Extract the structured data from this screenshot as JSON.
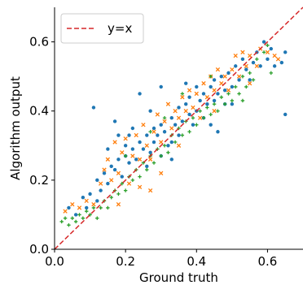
{
  "chart_data": {
    "type": "scatter",
    "xlabel": "Ground truth",
    "ylabel": "Algorithm output",
    "xlim": [
      0,
      0.7
    ],
    "ylim": [
      0,
      0.7
    ],
    "xticks": [
      "0.0",
      "0.2",
      "0.4",
      "0.6"
    ],
    "yticks": [
      "0.0",
      "0.2",
      "0.4",
      "0.6"
    ],
    "legend": {
      "position": "upper-left",
      "entries": [
        {
          "label": "y=x",
          "color": "#d62728",
          "style": "dashed"
        }
      ]
    },
    "reference_line": {
      "label": "y=x",
      "slope": 1,
      "intercept": 0,
      "color": "#d62728"
    },
    "series": [
      {
        "marker": "circle",
        "color": "#1f77b4",
        "points": [
          [
            0.04,
            0.12
          ],
          [
            0.06,
            0.1
          ],
          [
            0.08,
            0.15
          ],
          [
            0.09,
            0.12
          ],
          [
            0.1,
            0.16
          ],
          [
            0.11,
            0.41
          ],
          [
            0.12,
            0.14
          ],
          [
            0.12,
            0.2
          ],
          [
            0.13,
            0.17
          ],
          [
            0.14,
            0.22
          ],
          [
            0.15,
            0.19
          ],
          [
            0.16,
            0.24
          ],
          [
            0.17,
            0.23
          ],
          [
            0.17,
            0.37
          ],
          [
            0.18,
            0.26
          ],
          [
            0.18,
            0.33
          ],
          [
            0.19,
            0.21
          ],
          [
            0.2,
            0.27
          ],
          [
            0.2,
            0.3
          ],
          [
            0.21,
            0.25
          ],
          [
            0.22,
            0.29
          ],
          [
            0.22,
            0.35
          ],
          [
            0.23,
            0.26
          ],
          [
            0.24,
            0.31
          ],
          [
            0.24,
            0.45
          ],
          [
            0.25,
            0.29
          ],
          [
            0.26,
            0.24
          ],
          [
            0.26,
            0.33
          ],
          [
            0.27,
            0.28
          ],
          [
            0.28,
            0.35
          ],
          [
            0.28,
            0.31
          ],
          [
            0.29,
            0.33
          ],
          [
            0.3,
            0.27
          ],
          [
            0.3,
            0.36
          ],
          [
            0.31,
            0.34
          ],
          [
            0.32,
            0.3
          ],
          [
            0.33,
            0.38
          ],
          [
            0.33,
            0.31
          ],
          [
            0.34,
            0.36
          ],
          [
            0.35,
            0.33
          ],
          [
            0.35,
            0.41
          ],
          [
            0.36,
            0.37
          ],
          [
            0.37,
            0.42
          ],
          [
            0.38,
            0.39
          ],
          [
            0.38,
            0.44
          ],
          [
            0.39,
            0.36
          ],
          [
            0.4,
            0.4
          ],
          [
            0.4,
            0.47
          ],
          [
            0.41,
            0.43
          ],
          [
            0.42,
            0.38
          ],
          [
            0.42,
            0.45
          ],
          [
            0.43,
            0.42
          ],
          [
            0.44,
            0.47
          ],
          [
            0.45,
            0.43
          ],
          [
            0.45,
            0.49
          ],
          [
            0.46,
            0.45
          ],
          [
            0.47,
            0.5
          ],
          [
            0.48,
            0.46
          ],
          [
            0.48,
            0.42
          ],
          [
            0.49,
            0.51
          ],
          [
            0.5,
            0.47
          ],
          [
            0.51,
            0.53
          ],
          [
            0.52,
            0.49
          ],
          [
            0.53,
            0.55
          ],
          [
            0.54,
            0.52
          ],
          [
            0.55,
            0.49
          ],
          [
            0.56,
            0.54
          ],
          [
            0.57,
            0.57
          ],
          [
            0.58,
            0.53
          ],
          [
            0.59,
            0.6
          ],
          [
            0.6,
            0.55
          ],
          [
            0.61,
            0.58
          ],
          [
            0.62,
            0.53
          ],
          [
            0.64,
            0.54
          ],
          [
            0.65,
            0.39
          ],
          [
            0.65,
            0.57
          ],
          [
            0.3,
            0.47
          ],
          [
            0.21,
            0.33
          ],
          [
            0.15,
            0.29
          ],
          [
            0.46,
            0.34
          ],
          [
            0.37,
            0.48
          ],
          [
            0.27,
            0.4
          ],
          [
            0.5,
            0.42
          ],
          [
            0.33,
            0.26
          ],
          [
            0.44,
            0.36
          ]
        ]
      },
      {
        "marker": "x",
        "color": "#ff7f0e",
        "points": [
          [
            0.03,
            0.11
          ],
          [
            0.05,
            0.13
          ],
          [
            0.07,
            0.12
          ],
          [
            0.09,
            0.14
          ],
          [
            0.11,
            0.13
          ],
          [
            0.13,
            0.19
          ],
          [
            0.14,
            0.23
          ],
          [
            0.15,
            0.26
          ],
          [
            0.16,
            0.2
          ],
          [
            0.17,
            0.31
          ],
          [
            0.18,
            0.22
          ],
          [
            0.19,
            0.28
          ],
          [
            0.2,
            0.32
          ],
          [
            0.21,
            0.19
          ],
          [
            0.22,
            0.27
          ],
          [
            0.23,
            0.33
          ],
          [
            0.24,
            0.26
          ],
          [
            0.25,
            0.36
          ],
          [
            0.26,
            0.3
          ],
          [
            0.27,
            0.26
          ],
          [
            0.28,
            0.34
          ],
          [
            0.29,
            0.39
          ],
          [
            0.3,
            0.31
          ],
          [
            0.31,
            0.37
          ],
          [
            0.32,
            0.42
          ],
          [
            0.33,
            0.35
          ],
          [
            0.34,
            0.4
          ],
          [
            0.35,
            0.38
          ],
          [
            0.36,
            0.44
          ],
          [
            0.37,
            0.4
          ],
          [
            0.38,
            0.46
          ],
          [
            0.39,
            0.41
          ],
          [
            0.4,
            0.45
          ],
          [
            0.41,
            0.38
          ],
          [
            0.42,
            0.48
          ],
          [
            0.43,
            0.44
          ],
          [
            0.44,
            0.5
          ],
          [
            0.45,
            0.46
          ],
          [
            0.46,
            0.52
          ],
          [
            0.47,
            0.48
          ],
          [
            0.48,
            0.5
          ],
          [
            0.49,
            0.46
          ],
          [
            0.5,
            0.52
          ],
          [
            0.51,
            0.56
          ],
          [
            0.52,
            0.5
          ],
          [
            0.53,
            0.57
          ],
          [
            0.54,
            0.53
          ],
          [
            0.55,
            0.56
          ],
          [
            0.57,
            0.53
          ],
          [
            0.58,
            0.58
          ],
          [
            0.6,
            0.57
          ],
          [
            0.62,
            0.56
          ],
          [
            0.63,
            0.55
          ],
          [
            0.27,
            0.17
          ],
          [
            0.3,
            0.22
          ],
          [
            0.18,
            0.13
          ],
          [
            0.24,
            0.18
          ],
          [
            0.35,
            0.3
          ],
          [
            0.45,
            0.4
          ],
          [
            0.55,
            0.48
          ]
        ]
      },
      {
        "marker": "plus",
        "color": "#2ca02c",
        "points": [
          [
            0.02,
            0.08
          ],
          [
            0.03,
            0.09
          ],
          [
            0.04,
            0.07
          ],
          [
            0.05,
            0.09
          ],
          [
            0.06,
            0.08
          ],
          [
            0.07,
            0.1
          ],
          [
            0.08,
            0.09
          ],
          [
            0.09,
            0.11
          ],
          [
            0.1,
            0.1
          ],
          [
            0.11,
            0.12
          ],
          [
            0.12,
            0.09
          ],
          [
            0.13,
            0.12
          ],
          [
            0.14,
            0.14
          ],
          [
            0.15,
            0.12
          ],
          [
            0.16,
            0.15
          ],
          [
            0.17,
            0.17
          ],
          [
            0.18,
            0.16
          ],
          [
            0.19,
            0.19
          ],
          [
            0.2,
            0.17
          ],
          [
            0.21,
            0.21
          ],
          [
            0.22,
            0.2
          ],
          [
            0.23,
            0.23
          ],
          [
            0.24,
            0.21
          ],
          [
            0.25,
            0.25
          ],
          [
            0.26,
            0.23
          ],
          [
            0.27,
            0.27
          ],
          [
            0.28,
            0.25
          ],
          [
            0.29,
            0.29
          ],
          [
            0.3,
            0.27
          ],
          [
            0.31,
            0.3
          ],
          [
            0.32,
            0.28
          ],
          [
            0.33,
            0.33
          ],
          [
            0.34,
            0.31
          ],
          [
            0.35,
            0.35
          ],
          [
            0.36,
            0.33
          ],
          [
            0.37,
            0.37
          ],
          [
            0.38,
            0.34
          ],
          [
            0.39,
            0.38
          ],
          [
            0.4,
            0.36
          ],
          [
            0.41,
            0.4
          ],
          [
            0.42,
            0.38
          ],
          [
            0.43,
            0.41
          ],
          [
            0.44,
            0.39
          ],
          [
            0.45,
            0.42
          ],
          [
            0.46,
            0.4
          ],
          [
            0.47,
            0.44
          ],
          [
            0.48,
            0.42
          ],
          [
            0.49,
            0.45
          ],
          [
            0.5,
            0.43
          ],
          [
            0.51,
            0.47
          ],
          [
            0.52,
            0.45
          ],
          [
            0.53,
            0.5
          ],
          [
            0.54,
            0.47
          ],
          [
            0.55,
            0.51
          ],
          [
            0.56,
            0.49
          ],
          [
            0.57,
            0.55
          ],
          [
            0.59,
            0.57
          ],
          [
            0.6,
            0.59
          ],
          [
            0.61,
            0.51
          ],
          [
            0.31,
            0.38
          ],
          [
            0.2,
            0.27
          ],
          [
            0.36,
            0.45
          ],
          [
            0.27,
            0.34
          ],
          [
            0.44,
            0.5
          ],
          [
            0.53,
            0.43
          ]
        ]
      }
    ]
  }
}
